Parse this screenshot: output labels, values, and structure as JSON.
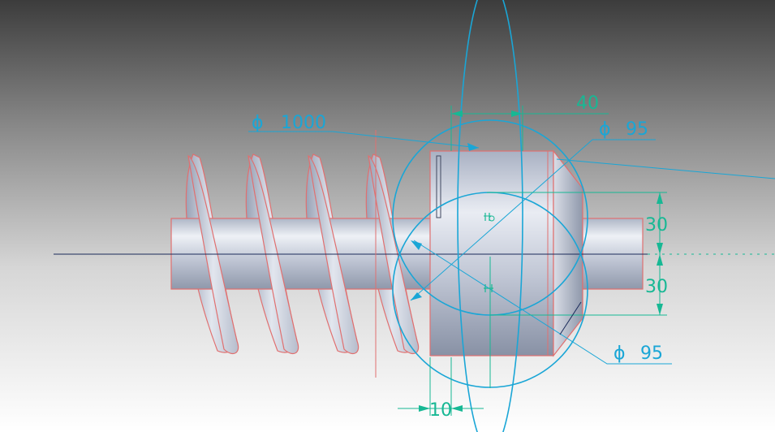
{
  "viewport": {
    "background_top": "#3c3c3c",
    "background_bottom": "#ffffff"
  },
  "colors": {
    "dimension_cyan": "#1aa6d6",
    "dimension_green": "#17b894",
    "edge_red": "#e07070",
    "centerline": "#1a2a5a",
    "model_body": "#c9cfdc"
  },
  "dimensions": {
    "dia_1000": {
      "symbol": "ϕ",
      "value": "1000"
    },
    "dia_95_top": {
      "symbol": "ϕ",
      "value": "95"
    },
    "dia_95_bottom": {
      "symbol": "ϕ",
      "value": "95"
    },
    "len_40": "40",
    "len_10": "10",
    "h_30_top": "30",
    "h_30_bottom": "30"
  },
  "icons": {
    "constraint_marker_upper": "parallel-constraint-icon",
    "constraint_marker_lower": "perpendicular-constraint-icon"
  }
}
